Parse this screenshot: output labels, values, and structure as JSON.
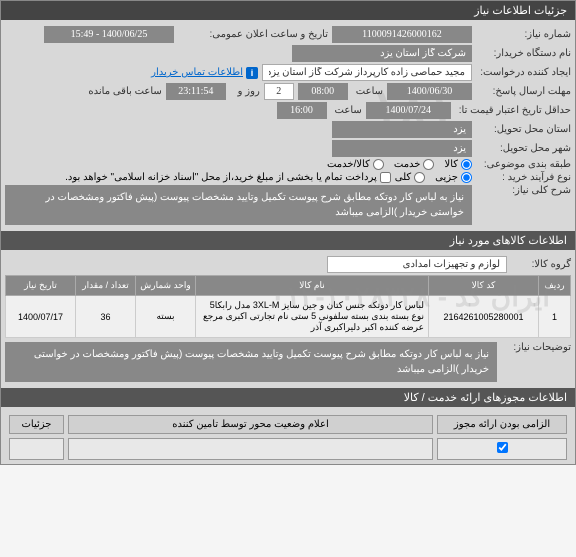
{
  "header": {
    "title": "جزئیات اطلاعات نیاز"
  },
  "form": {
    "need_number_label": "شماره نیاز:",
    "need_number": "1100091426000162",
    "public_announce_label": "تاریخ و ساعت اعلان عمومی:",
    "public_announce": "1400/06/25 - 15:49",
    "buyer_org_label": "نام دستگاه خریدار:",
    "buyer_org": "شرکت گاز استان یزد",
    "requester_label": "ایجاد کننده درخواست:",
    "requester": "مجید حماصی زاده کارپرداز شرکت گاز استان یزد",
    "contact_link": "اطلاعات تماس خریدار",
    "deadline_label": "مهلت ارسال پاسخ:",
    "deadline_date": "1400/06/30",
    "deadline_hour": "08:00",
    "hour_label": "ساعت",
    "day_label": "روز و",
    "days_remaining": "2",
    "remaining_time": "23:11:54",
    "remaining_label": "ساعت باقی مانده",
    "validity_label": "حداقل تاریخ اعتبار قیمت تا:",
    "validity_date": "1400/07/24",
    "validity_hour": "16:00",
    "delivery_province_label": "استان محل تحویل:",
    "delivery_province": "یزد",
    "delivery_city_label": "شهر محل تحویل:",
    "delivery_city": "یزد",
    "category_label": "طبقه بندی موضوعی:",
    "category_opt1": "کالا",
    "category_opt2": "خدمت",
    "category_opt3": "کالا/خدمت",
    "purchase_type_label": "نوع فرآیند خرید :",
    "purchase_type_opt1": "جزیی",
    "purchase_type_opt2": "کلی",
    "purchase_note": "پرداخت تمام یا بخشی از مبلغ خرید،از محل \"اسناد خزانه اسلامی\" خواهد بود.",
    "need_desc_label": "شرح کلی نیاز:",
    "need_desc": "نیاز به لباس کار دوتکه مطابق شرح پیوست تکمیل وتایید مشخصات پیوست (پیش فاکتور ومشخصات در خواستی خریدار )الزامی میباشد"
  },
  "goods": {
    "header": "اطلاعات کالاهای مورد نیاز",
    "group_label": "گروه کالا:",
    "group_value": "لوازم و تجهیزات امدادی",
    "watermark": "ایران کد - ۱۰۲۸۳۲۸-۰۱۲",
    "columns": {
      "row": "ردیف",
      "code": "کد کالا",
      "name": "نام کالا",
      "unit": "واحد شمارش",
      "qty": "تعداد / مقدار",
      "date": "تاریخ نیاز"
    },
    "rows": [
      {
        "row": "1",
        "code": "2164261005280001",
        "name": "لباس کار دوتکه جنس کتان و جین سایز 3XL-M مدل رابکا5 نوع بسته بندی بسته سلفونی 5 ستی نام تجارتی اکبری مرجع عرضه کننده اکبر دلیراکبری آذر",
        "unit": "بسته",
        "qty": "36",
        "date": "1400/07/17"
      }
    ],
    "notes_label": "توضیحات نیاز:",
    "notes": "نیاز به لباس کار دوتکه مطابق شرح پیوست تکمیل وتایید مشخصات پیوست (پیش فاکتور ومشخصات در خواستی خریدار )الزامی میباشد"
  },
  "licenses": {
    "header": "اطلاعات مجوزهای ارائه خدمت / کالا"
  },
  "bottom": {
    "col1": "الزامی بودن ارائه مجوز",
    "col2": "اعلام وضعیت محور توسط تامین کننده",
    "col3": "جزئیات"
  }
}
